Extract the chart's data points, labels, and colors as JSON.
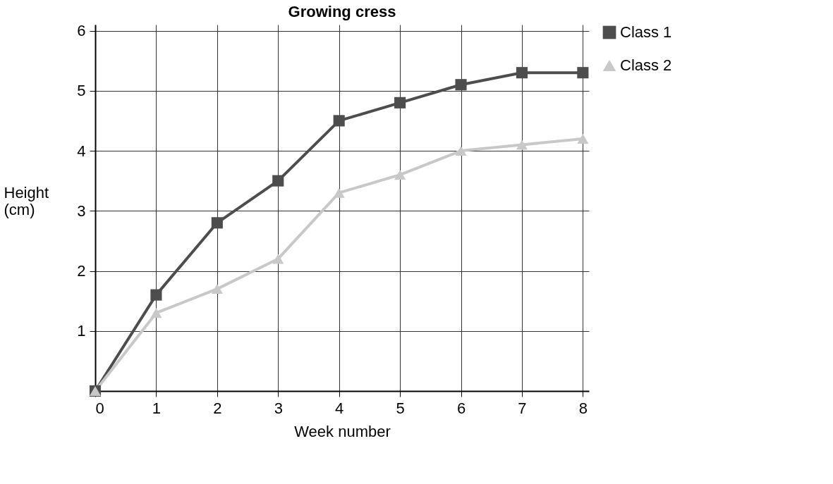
{
  "chart_data": {
    "type": "line",
    "title": "Growing cress",
    "xlabel": "Week number",
    "ylabel": "Height\n(cm)",
    "x": [
      0,
      1,
      2,
      3,
      4,
      5,
      6,
      7,
      8
    ],
    "series": [
      {
        "name": "Class 1",
        "color": "#4d4d4d",
        "marker": "square",
        "values": [
          0,
          1.6,
          2.8,
          3.5,
          4.5,
          4.8,
          5.1,
          5.3,
          5.3
        ]
      },
      {
        "name": "Class 2",
        "color": "#c8c8c8",
        "marker": "triangle",
        "values": [
          0,
          1.3,
          1.7,
          2.2,
          3.3,
          3.6,
          4.0,
          4.1,
          4.2
        ]
      }
    ],
    "xlim": [
      0,
      8.1
    ],
    "ylim": [
      0,
      6.1
    ],
    "xticks": [
      0,
      1,
      2,
      3,
      4,
      5,
      6,
      7,
      8
    ],
    "yticks": [
      1,
      2,
      3,
      4,
      5,
      6
    ],
    "grid": true,
    "legend": "right",
    "line_style": "solid"
  }
}
